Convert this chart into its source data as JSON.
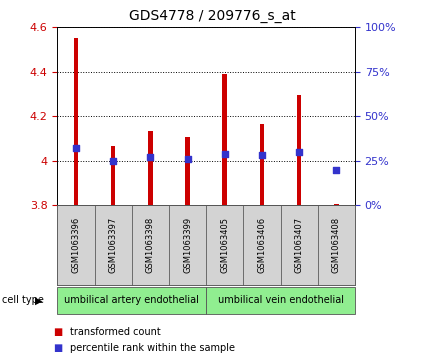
{
  "title": "GDS4778 / 209776_s_at",
  "samples": [
    "GSM1063396",
    "GSM1063397",
    "GSM1063398",
    "GSM1063399",
    "GSM1063405",
    "GSM1063406",
    "GSM1063407",
    "GSM1063408"
  ],
  "bar_values": [
    4.55,
    4.065,
    4.135,
    4.105,
    4.39,
    4.165,
    4.295,
    3.805
  ],
  "bar_bottom": 3.8,
  "blue_dot_percentile": [
    32,
    25,
    27,
    26,
    29,
    28,
    30,
    20
  ],
  "ylim": [
    3.8,
    4.6
  ],
  "y2lim": [
    0,
    100
  ],
  "yticks": [
    3.8,
    4.0,
    4.2,
    4.4,
    4.6
  ],
  "yticklabels": [
    "3.8",
    "4",
    "4.2",
    "4.4",
    "4.6"
  ],
  "y2ticks": [
    0,
    25,
    50,
    75,
    100
  ],
  "y2ticklabels": [
    "0%",
    "25%",
    "50%",
    "75%",
    "100%"
  ],
  "bar_color": "#cc0000",
  "dot_color": "#3333cc",
  "bar_width": 0.12,
  "group1_label": "umbilical artery endothelial",
  "group2_label": "umbilical vein endothelial",
  "group1_indices": [
    0,
    1,
    2,
    3
  ],
  "group2_indices": [
    4,
    5,
    6,
    7
  ],
  "cell_type_label": "cell type",
  "legend1_label": "transformed count",
  "legend2_label": "percentile rank within the sample",
  "group_bg_color": "#90ee90",
  "sample_bg_color": "#d3d3d3",
  "left_tick_color": "#cc0000",
  "right_tick_color": "#3333cc"
}
